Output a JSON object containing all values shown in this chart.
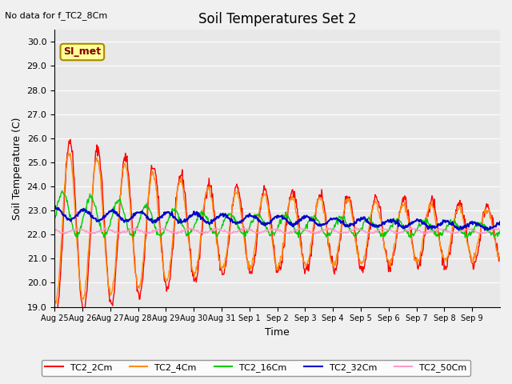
{
  "title": "Soil Temperatures Set 2",
  "subtitle": "No data for f_TC2_8Cm",
  "xlabel": "Time",
  "ylabel": "Soil Temperature (C)",
  "ylim": [
    19.0,
    30.5
  ],
  "yticks": [
    19.0,
    20.0,
    21.0,
    22.0,
    23.0,
    24.0,
    25.0,
    26.0,
    27.0,
    28.0,
    29.0,
    30.0
  ],
  "bg_color": "#e8e8e8",
  "fig_color": "#f0f0f0",
  "legend_labels": [
    "TC2_2Cm",
    "TC2_4Cm",
    "TC2_16Cm",
    "TC2_32Cm",
    "TC2_50Cm"
  ],
  "series_colors": {
    "TC2_2Cm": "#ff0000",
    "TC2_4Cm": "#ff8c00",
    "TC2_16Cm": "#00cc00",
    "TC2_32Cm": "#0000cc",
    "TC2_50Cm": "#ff99cc"
  },
  "xtick_labels": [
    "Aug 25",
    "Aug 26",
    "Aug 27",
    "Aug 28",
    "Aug 29",
    "Aug 30",
    "Aug 31",
    "Sep 1",
    "Sep 2",
    "Sep 3",
    "Sep 4",
    "Sep 5",
    "Sep 6",
    "Sep 7",
    "Sep 8",
    "Sep 9"
  ],
  "annotation_text": "SI_met"
}
